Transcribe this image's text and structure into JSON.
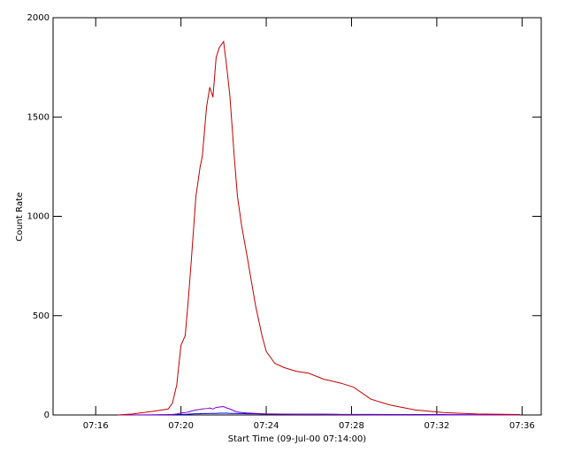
{
  "chart_data": {
    "type": "line",
    "xlabel": "Start Time (09-Jul-00 07:14:00)",
    "ylabel": "Count Rate",
    "x": [
      3.04,
      3.75,
      4.8,
      5.4,
      5.6,
      5.8,
      6.0,
      6.2,
      6.36,
      6.5,
      6.7,
      6.9,
      7.0,
      7.2,
      7.35,
      7.5,
      7.65,
      7.8,
      8.0,
      8.15,
      8.3,
      8.5,
      8.65,
      8.85,
      9.1,
      9.5,
      9.8,
      10.0,
      10.4,
      10.8,
      11.4,
      12.0,
      12.7,
      13.5,
      14.1,
      14.9,
      15.8,
      17.0,
      18.3,
      19.9,
      21.9
    ],
    "series": [
      {
        "color": "#c00000",
        "values": [
          0,
          5,
          20,
          30,
          60,
          150,
          350,
          400,
          600,
          800,
          1100,
          1250,
          1300,
          1550,
          1650,
          1600,
          1800,
          1850,
          1880,
          1750,
          1600,
          1300,
          1100,
          950,
          800,
          550,
          400,
          320,
          260,
          240,
          220,
          210,
          180,
          160,
          140,
          80,
          50,
          25,
          12,
          5,
          2
        ]
      },
      {
        "color": "#8000c0",
        "values": [
          0,
          0,
          1,
          2,
          3,
          5,
          10,
          12,
          15,
          20,
          25,
          28,
          30,
          32,
          35,
          30,
          38,
          40,
          42,
          35,
          30,
          20,
          15,
          12,
          10,
          8,
          6,
          5,
          4,
          4,
          3,
          3,
          3,
          2,
          2,
          1,
          1,
          1,
          0,
          0,
          0
        ]
      },
      {
        "color": "#0000ff",
        "values": [
          0,
          0,
          0,
          1,
          1,
          2,
          3,
          3,
          4,
          5,
          6,
          6,
          7,
          7,
          8,
          8,
          8,
          9,
          9,
          9,
          8,
          8,
          7,
          7,
          6,
          6,
          5,
          5,
          5,
          4,
          4,
          4,
          4,
          3,
          3,
          3,
          2,
          2,
          2,
          1,
          1
        ]
      }
    ],
    "xlim": [
      0,
      22.9
    ],
    "ylim": [
      0,
      2000
    ],
    "xticks": [
      {
        "value": 2,
        "label": "07:16"
      },
      {
        "value": 6,
        "label": "07:20"
      },
      {
        "value": 10,
        "label": "07:24"
      },
      {
        "value": 14,
        "label": "07:28"
      },
      {
        "value": 18,
        "label": "07:32"
      },
      {
        "value": 22,
        "label": "07:36"
      }
    ],
    "yticks": [
      0,
      500,
      1000,
      1500,
      2000
    ]
  }
}
